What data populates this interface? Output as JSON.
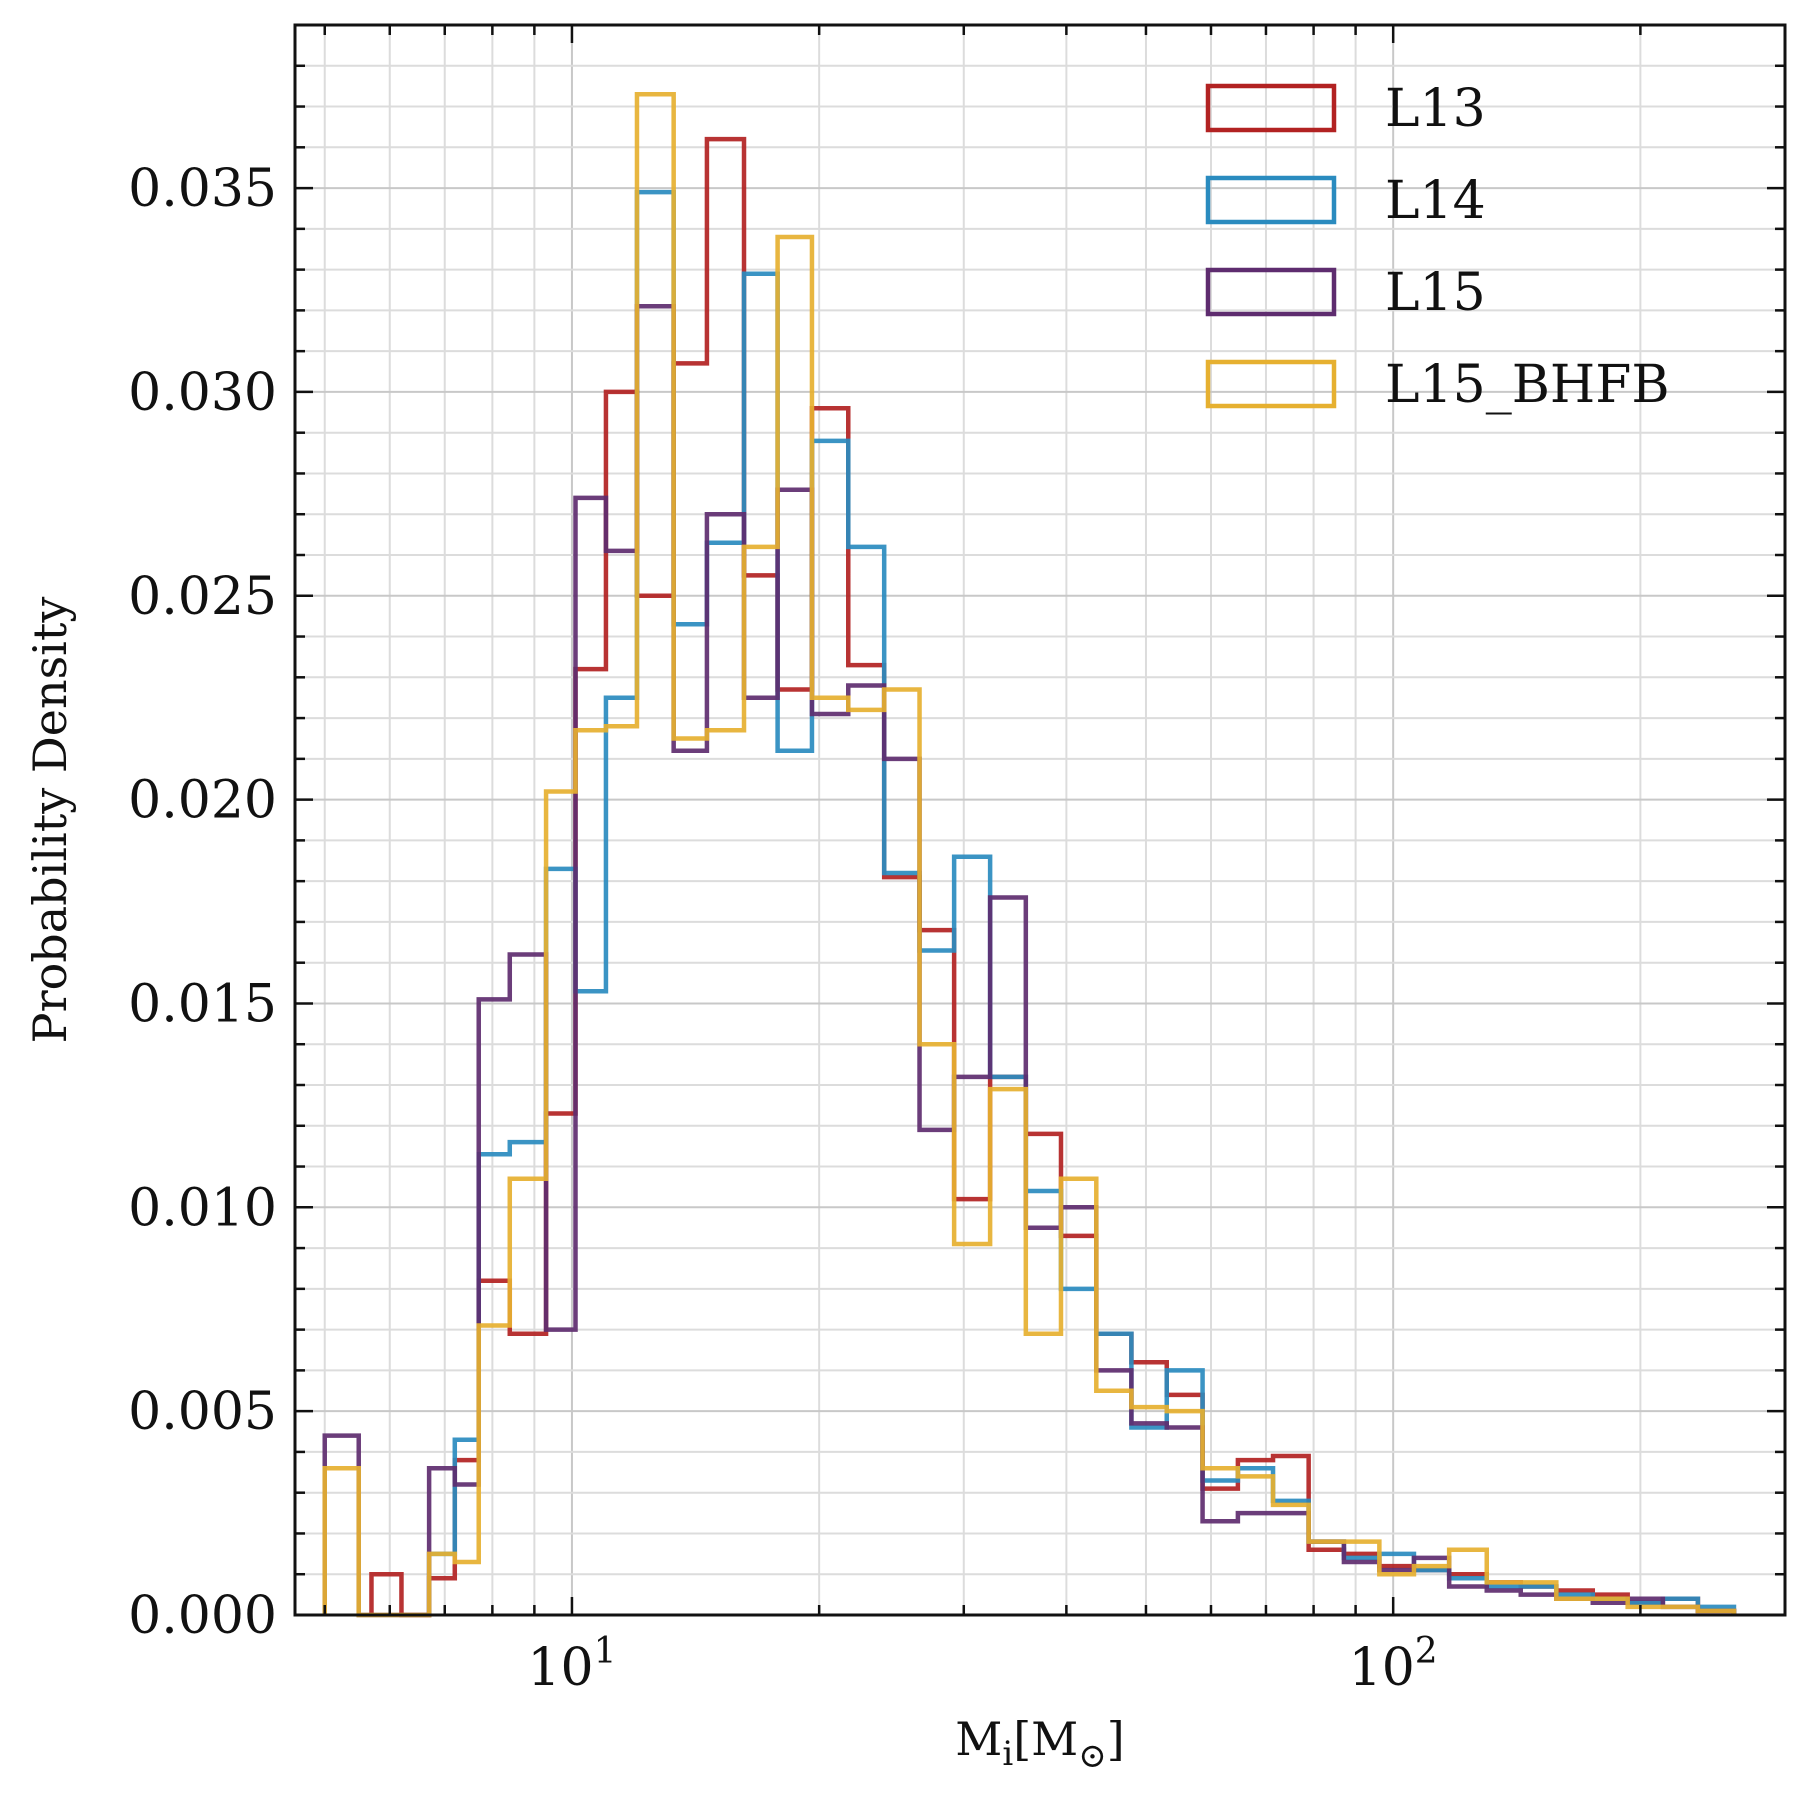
{
  "chart_data": {
    "type": "histogram",
    "xscale": "log",
    "xlim": [
      4.6,
      300
    ],
    "ylim": [
      0,
      0.039
    ],
    "xlabel": "M_i[M_⊙]",
    "ylabel": "Probability Density",
    "x_major_ticks": [
      {
        "value": 10,
        "base": "10",
        "exp": "1"
      },
      {
        "value": 100,
        "base": "10",
        "exp": "2"
      }
    ],
    "y_ticks": [
      {
        "value": 0.0,
        "label": "0.000"
      },
      {
        "value": 0.005,
        "label": "0.005"
      },
      {
        "value": 0.01,
        "label": "0.010"
      },
      {
        "value": 0.015,
        "label": "0.015"
      },
      {
        "value": 0.02,
        "label": "0.020"
      },
      {
        "value": 0.025,
        "label": "0.025"
      },
      {
        "value": 0.03,
        "label": "0.030"
      },
      {
        "value": 0.035,
        "label": "0.035"
      }
    ],
    "grid": true,
    "legend_position": "top-right",
    "series": [
      {
        "name": "L13",
        "color": "#b22222",
        "bins": [
          [
            5.7,
            6.2,
            0.001
          ],
          [
            6.2,
            6.7,
            0.0
          ],
          [
            6.7,
            7.2,
            0.0009
          ],
          [
            7.2,
            7.7,
            0.0038
          ],
          [
            7.7,
            8.4,
            0.0082
          ],
          [
            8.4,
            9.3,
            0.0069
          ],
          [
            9.3,
            10.1,
            0.0123
          ],
          [
            10.1,
            11.0,
            0.0232
          ],
          [
            11.0,
            12.0,
            0.03
          ],
          [
            12.0,
            13.3,
            0.025
          ],
          [
            13.3,
            14.6,
            0.0307
          ],
          [
            14.6,
            16.2,
            0.0362
          ],
          [
            16.2,
            17.8,
            0.0255
          ],
          [
            17.8,
            19.6,
            0.0227
          ],
          [
            19.6,
            21.7,
            0.0296
          ],
          [
            21.7,
            24.0,
            0.0233
          ],
          [
            24.0,
            26.5,
            0.0181
          ],
          [
            26.5,
            29.2,
            0.0168
          ],
          [
            29.2,
            32.3,
            0.0102
          ],
          [
            32.3,
            35.7,
            0.0132
          ],
          [
            35.7,
            39.4,
            0.0118
          ],
          [
            39.4,
            43.5,
            0.0093
          ],
          [
            43.5,
            48.0,
            0.0069
          ],
          [
            48.0,
            53.0,
            0.0062
          ],
          [
            53.0,
            58.6,
            0.0054
          ],
          [
            58.6,
            64.7,
            0.0031
          ],
          [
            64.7,
            71.4,
            0.0038
          ],
          [
            71.4,
            78.9,
            0.0039
          ],
          [
            78.9,
            87.1,
            0.0016
          ],
          [
            87.1,
            96.2,
            0.0015
          ],
          [
            96.2,
            106,
            0.0012
          ],
          [
            106,
            117,
            0.0011
          ],
          [
            117,
            130,
            0.001
          ],
          [
            130,
            143,
            0.0008
          ],
          [
            143,
            158,
            0.0007
          ],
          [
            158,
            175,
            0.0006
          ],
          [
            175,
            193,
            0.0005
          ],
          [
            193,
            213,
            0.0003
          ],
          [
            213,
            235,
            0.0004
          ],
          [
            235,
            260,
            0.0001
          ]
        ]
      },
      {
        "name": "L14",
        "color": "#2a8bbf",
        "bins": [
          [
            6.7,
            7.2,
            0.0015
          ],
          [
            7.2,
            7.7,
            0.0043
          ],
          [
            7.7,
            8.4,
            0.0113
          ],
          [
            8.4,
            9.3,
            0.0116
          ],
          [
            9.3,
            10.1,
            0.0183
          ],
          [
            10.1,
            11.0,
            0.0153
          ],
          [
            11.0,
            12.0,
            0.0225
          ],
          [
            12.0,
            13.3,
            0.0349
          ],
          [
            13.3,
            14.6,
            0.0243
          ],
          [
            14.6,
            16.2,
            0.0263
          ],
          [
            16.2,
            17.8,
            0.0329
          ],
          [
            17.8,
            19.6,
            0.0212
          ],
          [
            19.6,
            21.7,
            0.0288
          ],
          [
            21.7,
            24.0,
            0.0262
          ],
          [
            24.0,
            26.5,
            0.0182
          ],
          [
            26.5,
            29.2,
            0.0163
          ],
          [
            29.2,
            32.3,
            0.0186
          ],
          [
            32.3,
            35.7,
            0.0132
          ],
          [
            35.7,
            39.4,
            0.0104
          ],
          [
            39.4,
            43.5,
            0.008
          ],
          [
            43.5,
            48.0,
            0.0069
          ],
          [
            48.0,
            53.0,
            0.0046
          ],
          [
            53.0,
            58.6,
            0.006
          ],
          [
            58.6,
            64.7,
            0.0033
          ],
          [
            64.7,
            71.4,
            0.0036
          ],
          [
            71.4,
            78.9,
            0.0028
          ],
          [
            78.9,
            87.1,
            0.0018
          ],
          [
            87.1,
            96.2,
            0.0014
          ],
          [
            96.2,
            106,
            0.0015
          ],
          [
            106,
            117,
            0.0011
          ],
          [
            117,
            130,
            0.0009
          ],
          [
            130,
            143,
            0.0007
          ],
          [
            143,
            158,
            0.0007
          ],
          [
            158,
            175,
            0.0005
          ],
          [
            175,
            193,
            0.0004
          ],
          [
            193,
            213,
            0.0003
          ],
          [
            213,
            235,
            0.0004
          ],
          [
            235,
            260,
            0.0002
          ]
        ]
      },
      {
        "name": "L15",
        "color": "#5e2c6f",
        "bins": [
          [
            5.0,
            5.5,
            0.0044
          ],
          [
            5.5,
            6.2,
            0.0
          ],
          [
            6.2,
            6.7,
            0.0
          ],
          [
            6.7,
            7.2,
            0.0036
          ],
          [
            7.2,
            7.7,
            0.0032
          ],
          [
            7.7,
            8.4,
            0.0151
          ],
          [
            8.4,
            9.3,
            0.0162
          ],
          [
            9.3,
            10.1,
            0.007
          ],
          [
            10.1,
            11.0,
            0.0274
          ],
          [
            11.0,
            12.0,
            0.0261
          ],
          [
            12.0,
            13.3,
            0.0321
          ],
          [
            13.3,
            14.6,
            0.0212
          ],
          [
            14.6,
            16.2,
            0.027
          ],
          [
            16.2,
            17.8,
            0.0225
          ],
          [
            17.8,
            19.6,
            0.0276
          ],
          [
            19.6,
            21.7,
            0.0221
          ],
          [
            21.7,
            24.0,
            0.0228
          ],
          [
            24.0,
            26.5,
            0.021
          ],
          [
            26.5,
            29.2,
            0.0119
          ],
          [
            29.2,
            32.3,
            0.0132
          ],
          [
            32.3,
            35.7,
            0.0176
          ],
          [
            35.7,
            39.4,
            0.0095
          ],
          [
            39.4,
            43.5,
            0.01
          ],
          [
            43.5,
            48.0,
            0.006
          ],
          [
            48.0,
            53.0,
            0.0047
          ],
          [
            53.0,
            58.6,
            0.0046
          ],
          [
            58.6,
            64.7,
            0.0023
          ],
          [
            64.7,
            71.4,
            0.0025
          ],
          [
            71.4,
            78.9,
            0.0025
          ],
          [
            78.9,
            87.1,
            0.0018
          ],
          [
            87.1,
            96.2,
            0.0013
          ],
          [
            96.2,
            106,
            0.0011
          ],
          [
            106,
            117,
            0.0014
          ],
          [
            117,
            130,
            0.0007
          ],
          [
            130,
            143,
            0.0006
          ],
          [
            143,
            158,
            0.0005
          ],
          [
            158,
            175,
            0.0004
          ],
          [
            175,
            193,
            0.0003
          ],
          [
            193,
            213,
            0.0004
          ],
          [
            213,
            235,
            0.0002
          ],
          [
            235,
            260,
            0.0001
          ]
        ]
      },
      {
        "name": "L15_BHFB",
        "color": "#e6b030",
        "bins": [
          [
            5.0,
            5.5,
            0.0036
          ],
          [
            5.5,
            6.2,
            0.0
          ],
          [
            6.2,
            6.7,
            0.0
          ],
          [
            6.7,
            7.2,
            0.0015
          ],
          [
            7.2,
            7.7,
            0.0013
          ],
          [
            7.7,
            8.4,
            0.0071
          ],
          [
            8.4,
            9.3,
            0.0107
          ],
          [
            9.3,
            10.1,
            0.0202
          ],
          [
            10.1,
            11.0,
            0.0217
          ],
          [
            11.0,
            12.0,
            0.0218
          ],
          [
            12.0,
            13.3,
            0.0373
          ],
          [
            13.3,
            14.6,
            0.0215
          ],
          [
            14.6,
            16.2,
            0.0217
          ],
          [
            16.2,
            17.8,
            0.0262
          ],
          [
            17.8,
            19.6,
            0.0338
          ],
          [
            19.6,
            21.7,
            0.0225
          ],
          [
            21.7,
            24.0,
            0.0222
          ],
          [
            24.0,
            26.5,
            0.0227
          ],
          [
            26.5,
            29.2,
            0.014
          ],
          [
            29.2,
            32.3,
            0.0091
          ],
          [
            32.3,
            35.7,
            0.0129
          ],
          [
            35.7,
            39.4,
            0.0069
          ],
          [
            39.4,
            43.5,
            0.0107
          ],
          [
            43.5,
            48.0,
            0.0055
          ],
          [
            48.0,
            53.0,
            0.0051
          ],
          [
            53.0,
            58.6,
            0.005
          ],
          [
            58.6,
            64.7,
            0.0036
          ],
          [
            64.7,
            71.4,
            0.0034
          ],
          [
            71.4,
            78.9,
            0.0027
          ],
          [
            78.9,
            87.1,
            0.0018
          ],
          [
            87.1,
            96.2,
            0.0018
          ],
          [
            96.2,
            106,
            0.001
          ],
          [
            106,
            117,
            0.0012
          ],
          [
            117,
            130,
            0.0016
          ],
          [
            130,
            143,
            0.0008
          ],
          [
            143,
            158,
            0.0008
          ],
          [
            158,
            175,
            0.0004
          ],
          [
            175,
            193,
            0.0004
          ],
          [
            193,
            213,
            0.0002
          ],
          [
            213,
            235,
            0.0002
          ],
          [
            235,
            260,
            0.0001
          ]
        ]
      }
    ]
  }
}
